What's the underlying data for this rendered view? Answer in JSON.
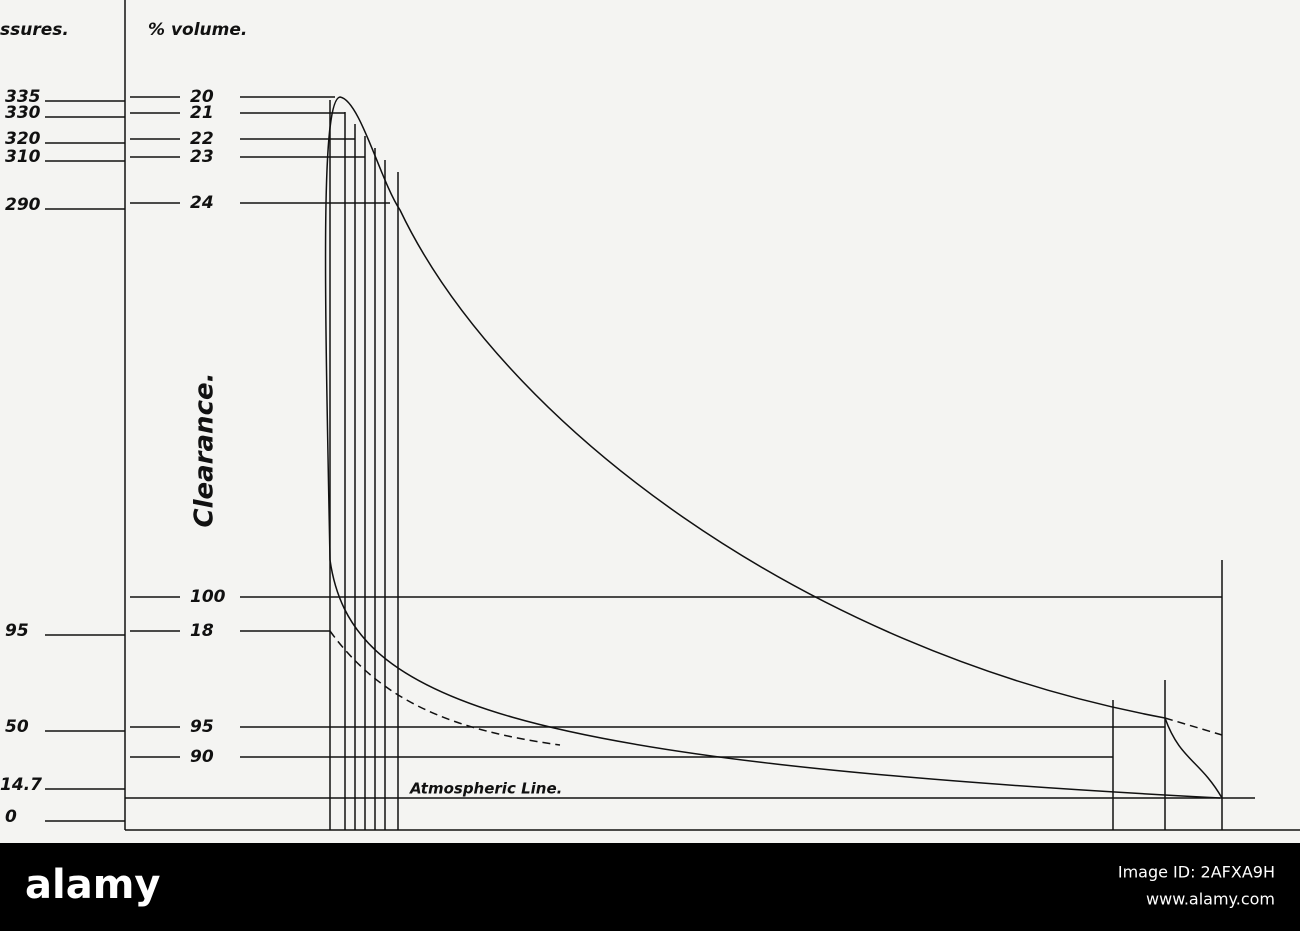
{
  "header": {
    "pressure_label": "ssures.",
    "volume_label": "% volume."
  },
  "pressures": [
    "335",
    "330",
    "320",
    "310",
    "290",
    "95",
    "50",
    "14.7",
    "0"
  ],
  "volumes": [
    "20",
    "21",
    "22",
    "23",
    "24",
    "100",
    "18",
    "95",
    "90"
  ],
  "labels": {
    "clearance": "Clearance.",
    "atmospheric": "Atmospheric Line."
  },
  "footer": {
    "brand": "alamy",
    "image_id": "Image ID: 2AFXA9H",
    "url": "www.alamy.com"
  }
}
